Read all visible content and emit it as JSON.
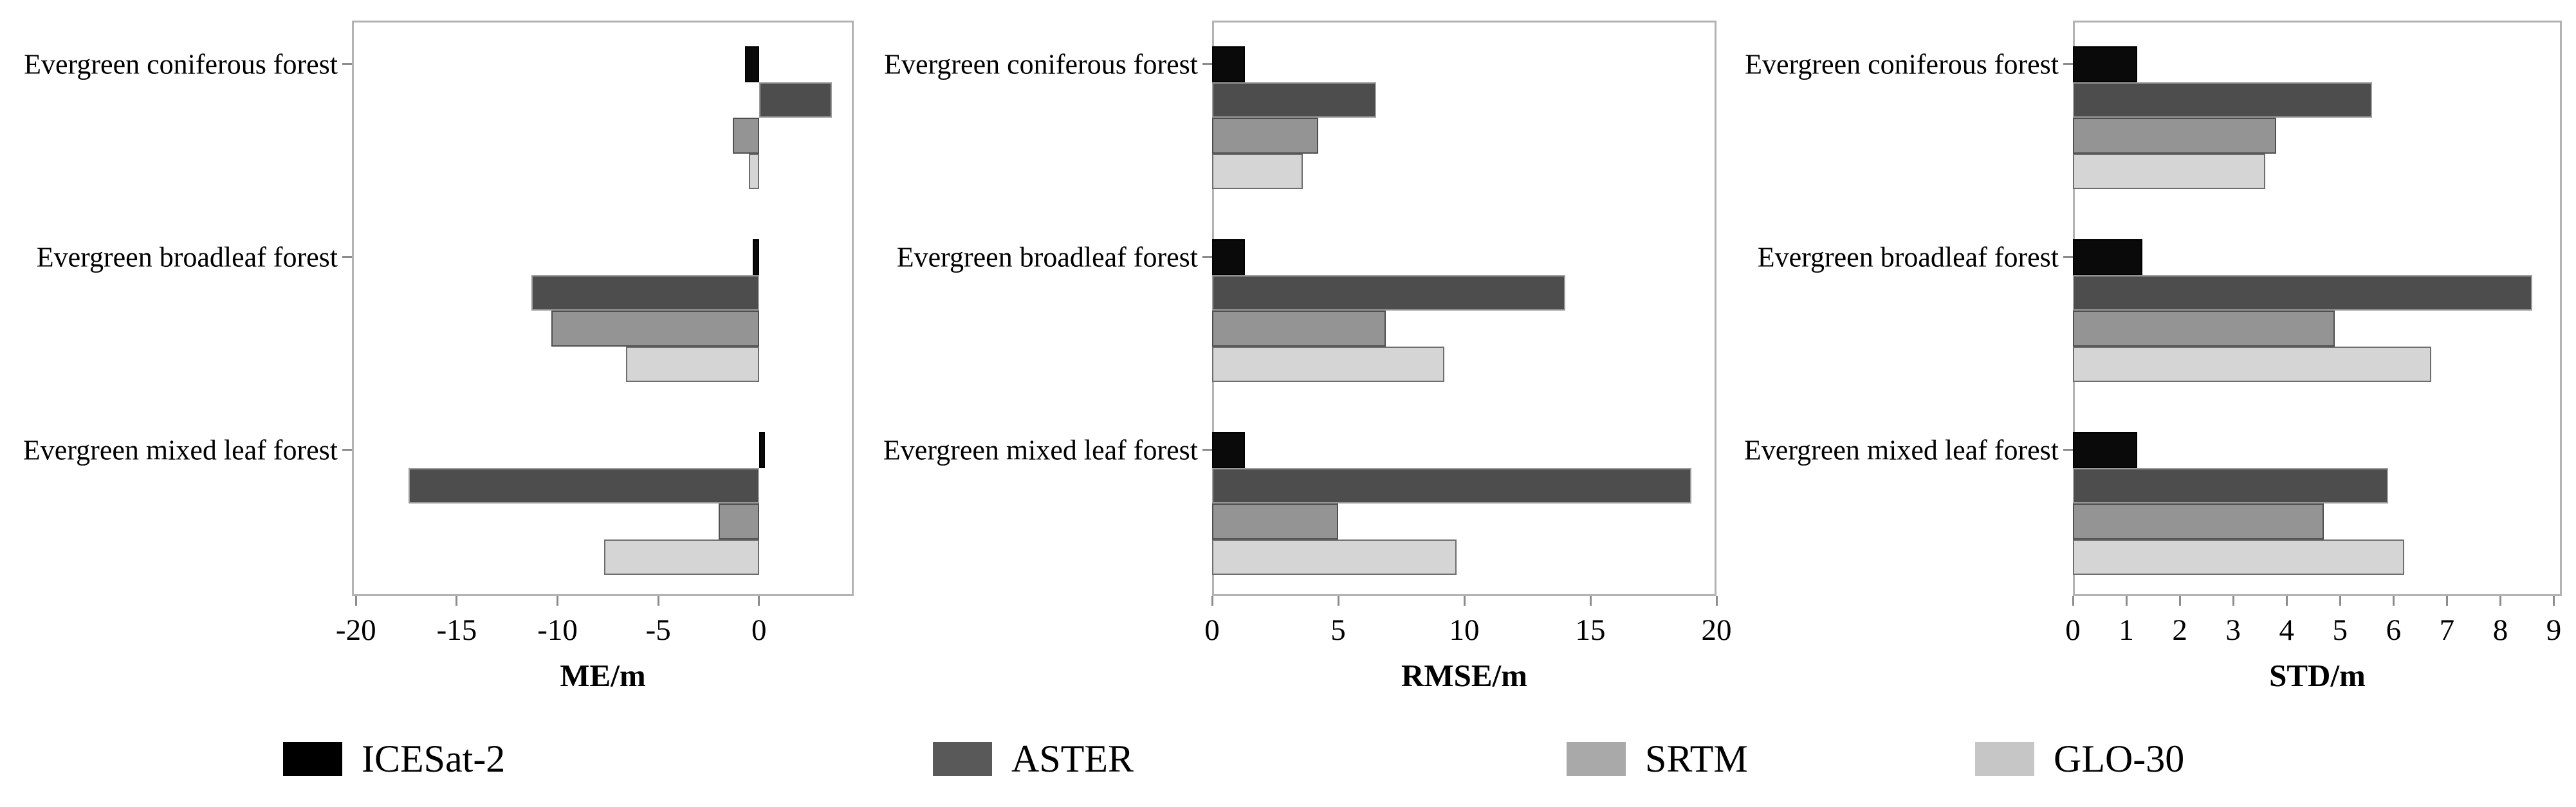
{
  "figure": {
    "legend": [
      {
        "label": "ICESat-2",
        "swatch_color": "#000000"
      },
      {
        "label": "ASTER",
        "swatch_color": "#595959"
      },
      {
        "label": "SRTM",
        "swatch_color": "#a9a9a9"
      },
      {
        "label": "GLO-30",
        "swatch_color": "#c6c6c6"
      }
    ],
    "series_styles": {
      "ICESat-2": {
        "fill": "#0a0a0a",
        "border": "#000000"
      },
      "ASTER": {
        "fill": "#4d4d4d",
        "border": "#9b9b9b"
      },
      "SRTM": {
        "fill": "#949494",
        "border": "#4f4f4f"
      },
      "GLO-30": {
        "fill": "#d5d5d5",
        "border": "#6e6e6e"
      }
    }
  },
  "chart_data": [
    {
      "type": "bar",
      "orientation": "horizontal",
      "xlabel": "ME/m",
      "categories": [
        "Evergreen coniferous forest",
        "Evergreen broadleaf forest",
        "Evergreen mixed leaf forest"
      ],
      "series": [
        {
          "name": "ICESat-2",
          "values": [
            -0.7,
            -0.3,
            0.3
          ]
        },
        {
          "name": "ASTER",
          "values": [
            3.6,
            -11.3,
            -17.4
          ]
        },
        {
          "name": "SRTM",
          "values": [
            -1.3,
            -10.3,
            -2.0
          ]
        },
        {
          "name": "GLO-30",
          "values": [
            -0.5,
            -6.6,
            -7.7
          ]
        }
      ],
      "xlim": [
        -20.2,
        4.7
      ],
      "xticks": [
        -20,
        -15,
        -10,
        -5,
        0
      ],
      "grid": false,
      "legend_position": "bottom"
    },
    {
      "type": "bar",
      "orientation": "horizontal",
      "xlabel": "RMSE/m",
      "categories": [
        "Evergreen coniferous forest",
        "Evergreen broadleaf forest",
        "Evergreen mixed leaf forest"
      ],
      "series": [
        {
          "name": "ICESat-2",
          "values": [
            1.3,
            1.3,
            1.3
          ]
        },
        {
          "name": "ASTER",
          "values": [
            6.5,
            14.0,
            19.0
          ]
        },
        {
          "name": "SRTM",
          "values": [
            4.2,
            6.9,
            5.0
          ]
        },
        {
          "name": "GLO-30",
          "values": [
            3.6,
            9.2,
            9.7
          ]
        }
      ],
      "xlim": [
        0,
        20
      ],
      "xticks": [
        0,
        5,
        10,
        15,
        20
      ],
      "grid": false,
      "legend_position": "bottom"
    },
    {
      "type": "bar",
      "orientation": "horizontal",
      "xlabel": "STD/m",
      "categories": [
        "Evergreen coniferous forest",
        "Evergreen broadleaf forest",
        "Evergreen mixed leaf forest"
      ],
      "series": [
        {
          "name": "ICESat-2",
          "values": [
            1.2,
            1.3,
            1.2
          ]
        },
        {
          "name": "ASTER",
          "values": [
            5.6,
            8.6,
            5.9
          ]
        },
        {
          "name": "SRTM",
          "values": [
            3.8,
            4.9,
            4.7
          ]
        },
        {
          "name": "GLO-30",
          "values": [
            3.6,
            6.7,
            6.2
          ]
        }
      ],
      "xlim": [
        0,
        9.15
      ],
      "xticks": [
        0,
        1,
        2,
        3,
        4,
        5,
        6,
        7,
        8,
        9
      ],
      "grid": false,
      "legend_position": "bottom"
    }
  ]
}
